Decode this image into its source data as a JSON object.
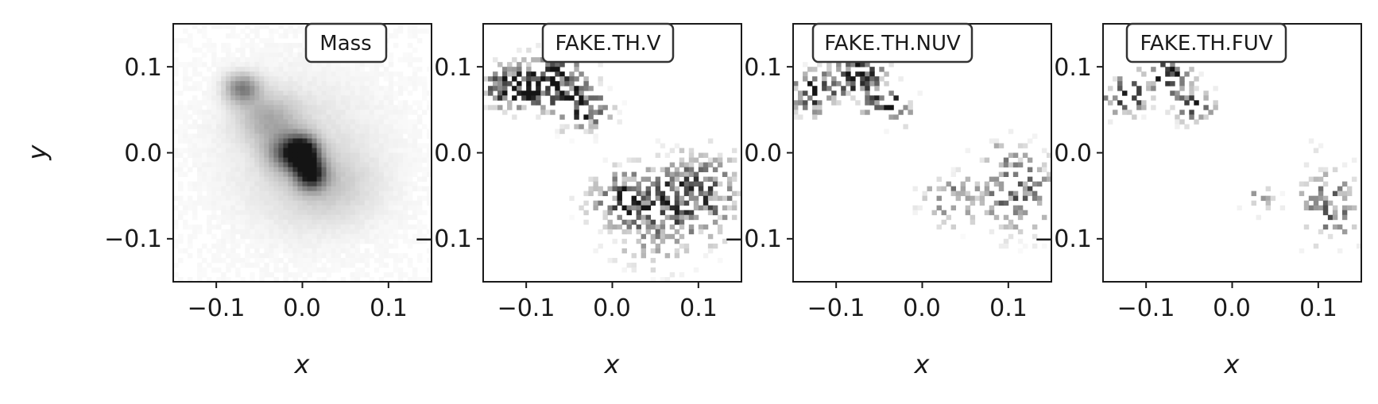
{
  "chart_data": [
    {
      "type": "heatmap",
      "title": "Mass",
      "xlabel": "x",
      "ylabel": "y",
      "xlim": [
        -0.15,
        0.15
      ],
      "ylim": [
        -0.15,
        0.15
      ],
      "xticks": [
        "−0.1",
        "0.0",
        "0.1"
      ],
      "yticks": [
        "0.1",
        "0.0",
        "−0.1"
      ],
      "xtick_values": [
        -0.1,
        0.0,
        0.1
      ],
      "ytick_values": [
        0.1,
        0.0,
        -0.1
      ],
      "colormap": "greys",
      "grid": false,
      "blobs": [
        {
          "x": 0.0,
          "y": 0.0,
          "sx": 0.012,
          "sy": 0.012,
          "w": 1.0
        },
        {
          "x": 0.01,
          "y": -0.025,
          "sx": 0.012,
          "sy": 0.012,
          "w": 0.85
        },
        {
          "x": -0.015,
          "y": 0.0,
          "sx": 0.018,
          "sy": 0.015,
          "w": 0.55
        },
        {
          "x": -0.07,
          "y": 0.075,
          "sx": 0.014,
          "sy": 0.012,
          "w": 0.5
        },
        {
          "x": -0.04,
          "y": 0.04,
          "sx": 0.025,
          "sy": 0.02,
          "w": 0.28
        },
        {
          "x": 0.0,
          "y": 0.0,
          "sx": 0.06,
          "sy": 0.06,
          "w": 0.12
        },
        {
          "x": 0.03,
          "y": -0.04,
          "sx": 0.04,
          "sy": 0.03,
          "w": 0.15
        }
      ],
      "sparse": false
    },
    {
      "type": "heatmap",
      "title": "FAKE.TH.V",
      "xlabel": "x",
      "ylabel": "",
      "xlim": [
        -0.15,
        0.15
      ],
      "ylim": [
        -0.15,
        0.15
      ],
      "xticks": [
        "−0.1",
        "0.0",
        "0.1"
      ],
      "yticks": [
        "0.1",
        "0.0",
        "−0.1"
      ],
      "xtick_values": [
        -0.1,
        0.0,
        0.1
      ],
      "ytick_values": [
        0.1,
        0.0,
        -0.1
      ],
      "colormap": "greys",
      "grid": false,
      "blobs": [
        {
          "x": -0.12,
          "y": 0.075,
          "sx": 0.02,
          "sy": 0.015,
          "w": 1.0
        },
        {
          "x": -0.07,
          "y": 0.085,
          "sx": 0.025,
          "sy": 0.02,
          "w": 1.0
        },
        {
          "x": -0.035,
          "y": 0.05,
          "sx": 0.02,
          "sy": 0.015,
          "w": 0.95
        },
        {
          "x": 0.02,
          "y": -0.05,
          "sx": 0.03,
          "sy": 0.02,
          "w": 0.7
        },
        {
          "x": 0.1,
          "y": -0.045,
          "sx": 0.035,
          "sy": 0.03,
          "w": 0.65
        },
        {
          "x": 0.05,
          "y": -0.09,
          "sx": 0.04,
          "sy": 0.03,
          "w": 0.35
        }
      ],
      "sparse": true,
      "density": 0.55
    },
    {
      "type": "heatmap",
      "title": "FAKE.TH.NUV",
      "xlabel": "x",
      "ylabel": "",
      "xlim": [
        -0.15,
        0.15
      ],
      "ylim": [
        -0.15,
        0.15
      ],
      "xticks": [
        "−0.1",
        "0.0",
        "0.1"
      ],
      "yticks": [
        "0.1",
        "0.0",
        "−0.1"
      ],
      "xtick_values": [
        -0.1,
        0.0,
        0.1
      ],
      "ytick_values": [
        0.1,
        0.0,
        -0.1
      ],
      "colormap": "greys",
      "grid": false,
      "blobs": [
        {
          "x": -0.125,
          "y": 0.07,
          "sx": 0.018,
          "sy": 0.015,
          "w": 1.0
        },
        {
          "x": -0.075,
          "y": 0.09,
          "sx": 0.02,
          "sy": 0.015,
          "w": 1.0
        },
        {
          "x": -0.04,
          "y": 0.055,
          "sx": 0.018,
          "sy": 0.014,
          "w": 0.9
        },
        {
          "x": 0.03,
          "y": -0.055,
          "sx": 0.02,
          "sy": 0.018,
          "w": 0.6
        },
        {
          "x": 0.11,
          "y": -0.045,
          "sx": 0.03,
          "sy": 0.03,
          "w": 0.65
        },
        {
          "x": 0.09,
          "y": 0.0,
          "sx": 0.015,
          "sy": 0.01,
          "w": 0.3
        }
      ],
      "sparse": true,
      "density": 0.45
    },
    {
      "type": "heatmap",
      "title": "FAKE.TH.FUV",
      "xlabel": "x",
      "ylabel": "",
      "xlim": [
        -0.15,
        0.15
      ],
      "ylim": [
        -0.15,
        0.15
      ],
      "xticks": [
        "−0.1",
        "0.0",
        "0.1"
      ],
      "yticks": [
        "0.1",
        "0.0",
        "−0.1"
      ],
      "xtick_values": [
        -0.1,
        0.0,
        0.1
      ],
      "ytick_values": [
        0.1,
        0.0,
        -0.1
      ],
      "colormap": "greys",
      "grid": false,
      "blobs": [
        {
          "x": -0.125,
          "y": 0.065,
          "sx": 0.016,
          "sy": 0.014,
          "w": 1.0
        },
        {
          "x": -0.075,
          "y": 0.09,
          "sx": 0.018,
          "sy": 0.014,
          "w": 1.0
        },
        {
          "x": -0.045,
          "y": 0.055,
          "sx": 0.015,
          "sy": 0.012,
          "w": 0.85
        },
        {
          "x": 0.03,
          "y": -0.055,
          "sx": 0.012,
          "sy": 0.012,
          "w": 0.4
        },
        {
          "x": 0.115,
          "y": -0.06,
          "sx": 0.025,
          "sy": 0.03,
          "w": 0.6
        },
        {
          "x": 0.09,
          "y": 0.0,
          "sx": 0.012,
          "sy": 0.008,
          "w": 0.2
        }
      ],
      "sparse": true,
      "density": 0.4
    }
  ]
}
